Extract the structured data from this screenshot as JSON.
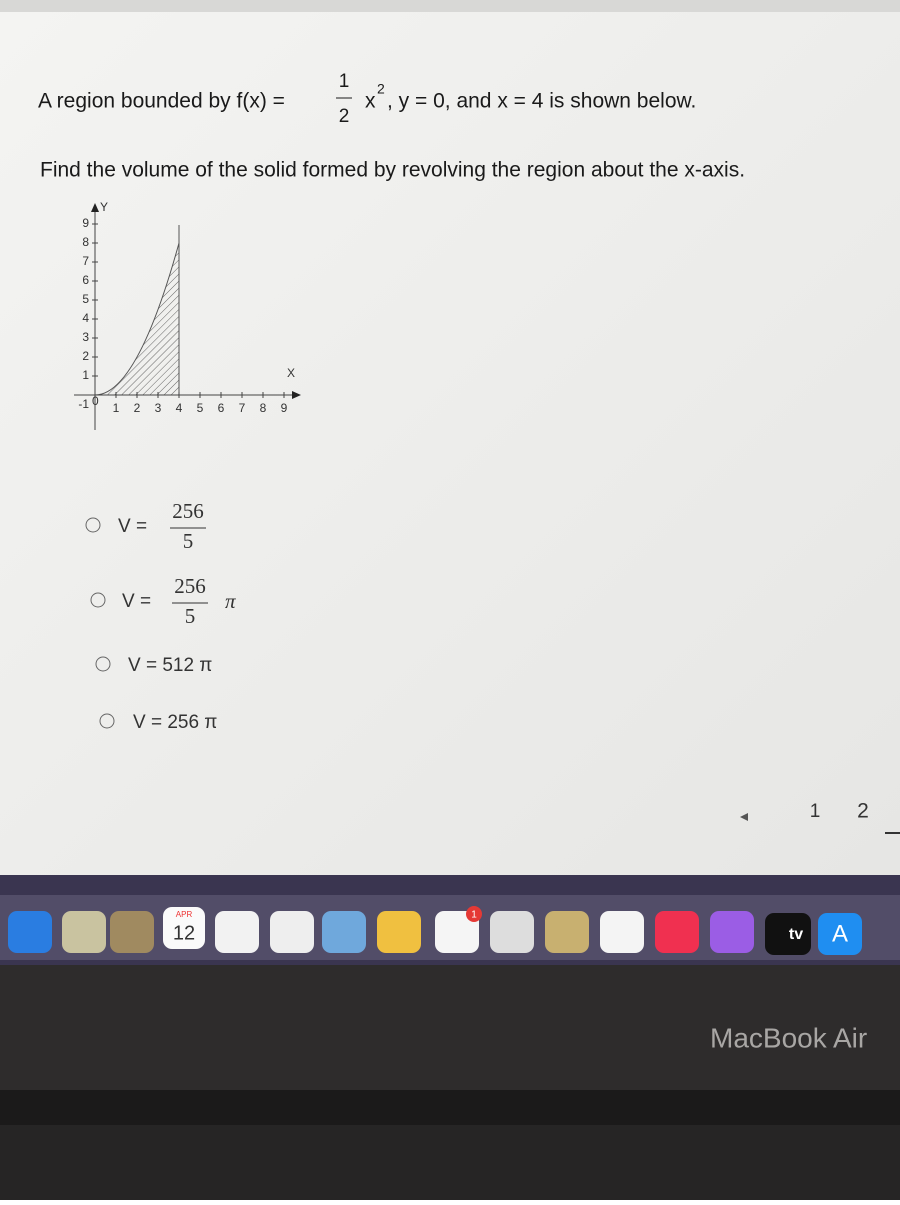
{
  "question": {
    "prefix": "A region bounded by f(x) =",
    "frac_num": "1",
    "frac_den": "2",
    "var": "x",
    "exponent": "2",
    "suffix": ", y = 0, and x = 4 is shown below."
  },
  "instruction": "Find the volume of the solid formed by revolving the region about the x-axis.",
  "graph": {
    "y_label": "Y",
    "x_label": "X",
    "origin": "0",
    "neg_one": "-1",
    "y_ticks": [
      "1",
      "2",
      "3",
      "4",
      "5",
      "6",
      "7",
      "8",
      "9"
    ],
    "x_ticks": [
      "1",
      "2",
      "3",
      "4",
      "5",
      "6",
      "7",
      "8",
      "9"
    ]
  },
  "options": [
    {
      "lhs": "V =",
      "num": "256",
      "den": "5"
    },
    {
      "lhs": "V =",
      "num": "256",
      "den": "5",
      "pi": "π"
    },
    {
      "text": "V = 512 π"
    },
    {
      "text": "V = 256 π"
    }
  ],
  "pagination": [
    "1",
    "2"
  ],
  "dock": {
    "calendar_month": "APR",
    "calendar_day": "12",
    "badge": "1",
    "tv": "tv",
    "appstore": "A"
  },
  "laptop_label": "MacBook Air"
}
